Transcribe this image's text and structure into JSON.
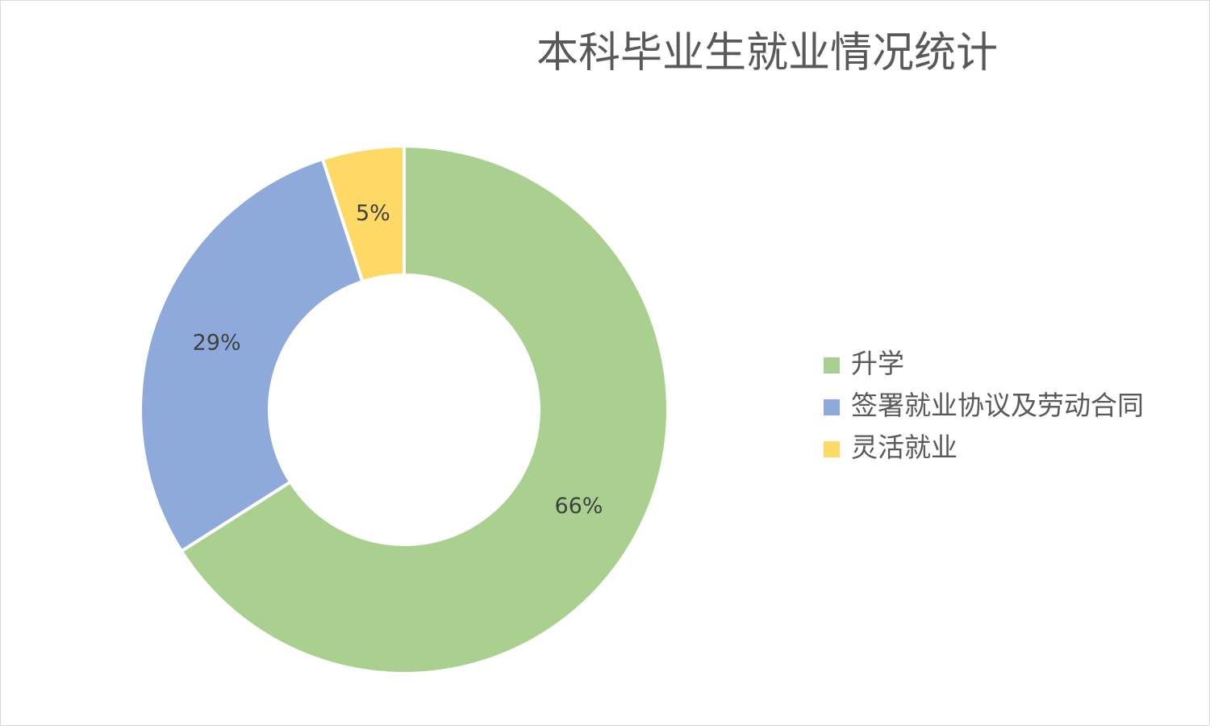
{
  "chart_data": {
    "type": "pie",
    "variant": "doughnut",
    "title": "本科毕业生就业情况统计",
    "categories": [
      "升学",
      "签署就业协议及劳动合同",
      "灵活就业"
    ],
    "values": [
      66,
      29,
      5
    ],
    "data_labels": [
      "66%",
      "29%",
      "5%"
    ],
    "colors": [
      "#a9d08e",
      "#8eaadb",
      "#ffd966"
    ],
    "legend_position": "right"
  }
}
